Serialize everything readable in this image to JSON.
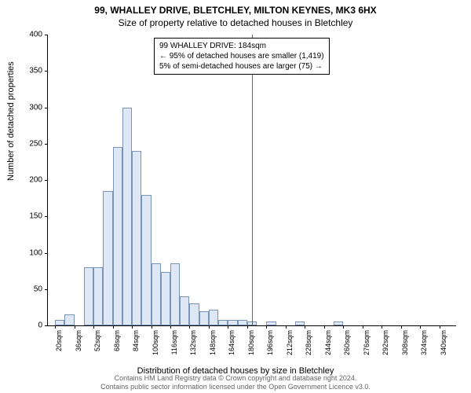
{
  "title_line1": "99, WHALLEY DRIVE, BLETCHLEY, MILTON KEYNES, MK3 6HX",
  "title_line2": "Size of property relative to detached houses in Bletchley",
  "ylabel": "Number of detached properties",
  "xlabel": "Distribution of detached houses by size in Bletchley",
  "footer1": "Contains HM Land Registry data © Crown copyright and database right 2024.",
  "footer2": "Contains public sector information licensed under the Open Government Licence v3.0.",
  "chart": {
    "type": "histogram",
    "ylim": [
      0,
      400
    ],
    "ytick_step": 50,
    "x_start": 20,
    "x_step": 16,
    "x_count": 21,
    "x_unit": "sqm",
    "bar_color": "#dde7f5",
    "bar_border": "#7a94b8",
    "background_color": "#ffffff",
    "refline_color": "#cc3333",
    "refline_x": 184,
    "values": [
      8,
      15,
      0,
      80,
      80,
      185,
      245,
      300,
      240,
      180,
      85,
      73,
      85,
      40,
      30,
      20,
      22,
      8,
      8,
      8,
      5,
      0,
      5,
      0,
      0,
      5,
      0,
      0,
      0,
      5,
      0,
      0,
      0,
      0,
      0,
      0,
      0,
      0,
      0,
      0,
      0
    ],
    "bar_span": 8
  },
  "annot": {
    "line1": "99 WHALLEY DRIVE: 184sqm",
    "line2": "← 95% of detached houses are smaller (1,419)",
    "line3": "5% of semi-detached houses are larger (75) →"
  }
}
